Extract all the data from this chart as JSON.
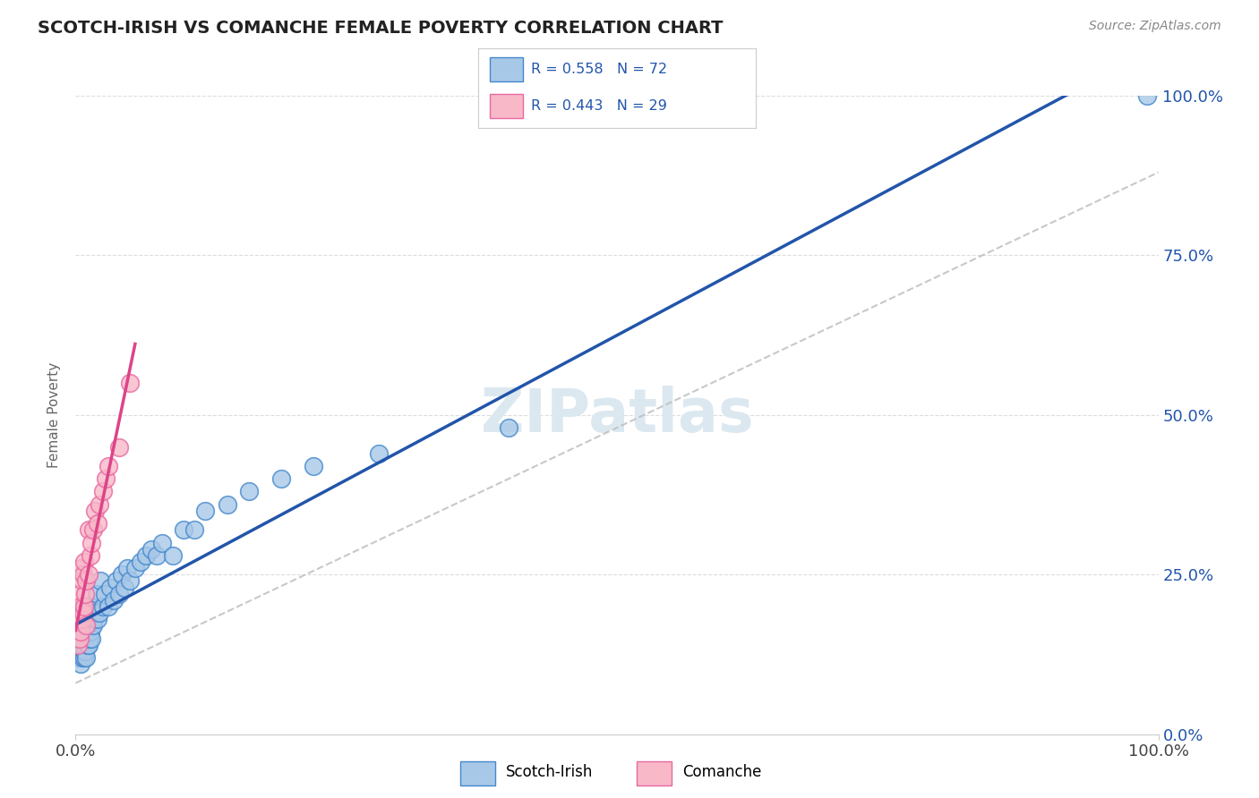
{
  "title": "SCOTCH-IRISH VS COMANCHE FEMALE POVERTY CORRELATION CHART",
  "source": "Source: ZipAtlas.com",
  "ylabel": "Female Poverty",
  "scotch_irish_R": 0.558,
  "scotch_irish_N": 72,
  "comanche_R": 0.443,
  "comanche_N": 29,
  "blue_color": "#a8c8e8",
  "pink_color": "#f8b8c8",
  "blue_edge_color": "#4488cc",
  "pink_edge_color": "#e868a0",
  "blue_line_color": "#2255aa",
  "pink_line_color": "#dd4488",
  "title_color": "#222222",
  "watermark_color": "#dce8f0",
  "background_color": "#ffffff",
  "grid_color": "#dddddd",
  "ytick_values": [
    0.0,
    0.25,
    0.5,
    0.75,
    1.0
  ],
  "right_ytick_labels": [
    "0.0%",
    "25.0%",
    "50.0%",
    "75.0%",
    "100.0%"
  ],
  "scotch_irish_x": [
    0.002,
    0.003,
    0.003,
    0.004,
    0.004,
    0.004,
    0.005,
    0.005,
    0.005,
    0.005,
    0.006,
    0.006,
    0.006,
    0.006,
    0.007,
    0.007,
    0.007,
    0.007,
    0.008,
    0.008,
    0.008,
    0.008,
    0.009,
    0.009,
    0.009,
    0.01,
    0.01,
    0.01,
    0.011,
    0.011,
    0.012,
    0.012,
    0.013,
    0.013,
    0.014,
    0.015,
    0.015,
    0.016,
    0.017,
    0.018,
    0.02,
    0.02,
    0.022,
    0.023,
    0.025,
    0.027,
    0.03,
    0.032,
    0.035,
    0.038,
    0.04,
    0.043,
    0.045,
    0.048,
    0.05,
    0.055,
    0.06,
    0.065,
    0.07,
    0.075,
    0.08,
    0.09,
    0.1,
    0.11,
    0.12,
    0.14,
    0.16,
    0.19,
    0.22,
    0.28,
    0.4,
    0.99
  ],
  "scotch_irish_y": [
    0.12,
    0.14,
    0.16,
    0.13,
    0.15,
    0.18,
    0.11,
    0.13,
    0.15,
    0.17,
    0.12,
    0.14,
    0.16,
    0.19,
    0.13,
    0.15,
    0.17,
    0.2,
    0.12,
    0.14,
    0.16,
    0.2,
    0.13,
    0.15,
    0.18,
    0.12,
    0.15,
    0.18,
    0.14,
    0.17,
    0.14,
    0.18,
    0.15,
    0.2,
    0.16,
    0.15,
    0.2,
    0.17,
    0.18,
    0.19,
    0.18,
    0.22,
    0.19,
    0.24,
    0.2,
    0.22,
    0.2,
    0.23,
    0.21,
    0.24,
    0.22,
    0.25,
    0.23,
    0.26,
    0.24,
    0.26,
    0.27,
    0.28,
    0.29,
    0.28,
    0.3,
    0.28,
    0.32,
    0.32,
    0.35,
    0.36,
    0.38,
    0.4,
    0.42,
    0.44,
    0.48,
    1.0
  ],
  "comanche_x": [
    0.002,
    0.003,
    0.004,
    0.004,
    0.005,
    0.005,
    0.005,
    0.006,
    0.006,
    0.007,
    0.007,
    0.008,
    0.008,
    0.009,
    0.01,
    0.01,
    0.012,
    0.012,
    0.014,
    0.015,
    0.016,
    0.018,
    0.02,
    0.022,
    0.025,
    0.028,
    0.03,
    0.04,
    0.05
  ],
  "comanche_y": [
    0.14,
    0.18,
    0.15,
    0.22,
    0.16,
    0.2,
    0.26,
    0.18,
    0.24,
    0.19,
    0.25,
    0.2,
    0.27,
    0.22,
    0.17,
    0.24,
    0.25,
    0.32,
    0.28,
    0.3,
    0.32,
    0.35,
    0.33,
    0.36,
    0.38,
    0.4,
    0.42,
    0.45,
    0.55
  ]
}
